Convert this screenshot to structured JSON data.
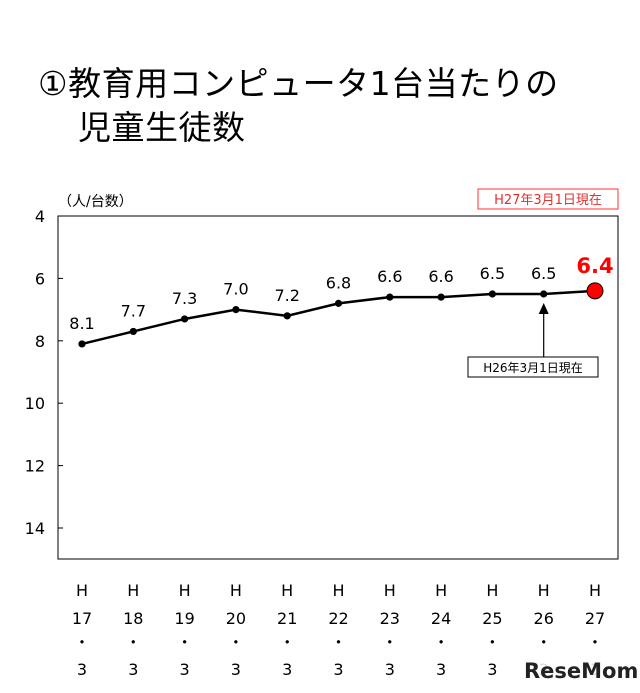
{
  "title_line1": "①教育用コンピュータ1台当たりの",
  "title_line2": "児童生徒数",
  "unit_label": "（人/台数）",
  "note_current": "H27年3月1日現在",
  "note_previous": "H26年3月1日現在",
  "watermark": "ReseMom",
  "colors": {
    "line": "#000000",
    "highlight": "#ff0000",
    "note_border": "#ff3333",
    "note_text": "#e03030"
  },
  "chart_data": {
    "type": "line",
    "y_inverted": true,
    "ylim": [
      4,
      15
    ],
    "y_ticks": [
      4,
      6,
      8,
      10,
      12,
      14
    ],
    "grid": false,
    "categories": [
      [
        "H",
        "17",
        "・",
        "3"
      ],
      [
        "H",
        "18",
        "・",
        "3"
      ],
      [
        "H",
        "19",
        "・",
        "3"
      ],
      [
        "H",
        "20",
        "・",
        "3"
      ],
      [
        "H",
        "21",
        "・",
        "3"
      ],
      [
        "H",
        "22",
        "・",
        "3"
      ],
      [
        "H",
        "23",
        "・",
        "3"
      ],
      [
        "H",
        "24",
        "・",
        "3"
      ],
      [
        "H",
        "25",
        "・",
        "3"
      ],
      [
        "H",
        "26",
        "・",
        "3"
      ],
      [
        "H",
        "27",
        "・",
        "3"
      ]
    ],
    "values": [
      8.1,
      7.7,
      7.3,
      7.0,
      7.2,
      6.8,
      6.6,
      6.6,
      6.5,
      6.5,
      6.4
    ],
    "labels": [
      "8.1",
      "7.7",
      "7.3",
      "7.0",
      "7.2",
      "6.8",
      "6.6",
      "6.6",
      "6.5",
      "6.5",
      "6.4"
    ],
    "highlight_index": 10,
    "annotation_index": 9
  }
}
